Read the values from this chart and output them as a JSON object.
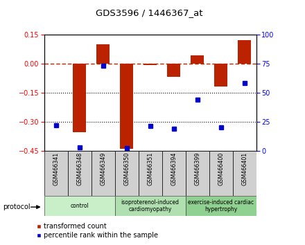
{
  "title": "GDS3596 / 1446367_at",
  "samples": [
    "GSM466341",
    "GSM466348",
    "GSM466349",
    "GSM466350",
    "GSM466351",
    "GSM466394",
    "GSM466399",
    "GSM466400",
    "GSM466401"
  ],
  "bar_values": [
    0.0,
    -0.355,
    0.1,
    -0.44,
    -0.01,
    -0.07,
    0.04,
    -0.12,
    0.12
  ],
  "dot_values_pct": [
    22,
    3,
    73,
    2,
    21,
    19,
    44,
    20,
    58
  ],
  "groups": [
    {
      "label": "control",
      "start": 0,
      "end": 3,
      "color": "#c8efc8"
    },
    {
      "label": "isoproterenol-induced\ncardiomyopathy",
      "start": 3,
      "end": 6,
      "color": "#b0e0b0"
    },
    {
      "label": "exercise-induced cardiac\nhypertrophy",
      "start": 6,
      "end": 9,
      "color": "#90d090"
    }
  ],
  "ylim_left": [
    -0.45,
    0.15
  ],
  "ylim_right": [
    0,
    100
  ],
  "left_ticks": [
    0.15,
    0.0,
    -0.15,
    -0.3,
    -0.45
  ],
  "right_ticks": [
    100,
    75,
    50,
    25,
    0
  ],
  "bar_color": "#bb2200",
  "dot_color": "#0000cc",
  "hline_color": "#bb2200",
  "protocol_label": "protocol",
  "legend_bar_label": "transformed count",
  "legend_dot_label": "percentile rank within the sample",
  "figsize": [
    4.4,
    3.54
  ],
  "dpi": 100
}
